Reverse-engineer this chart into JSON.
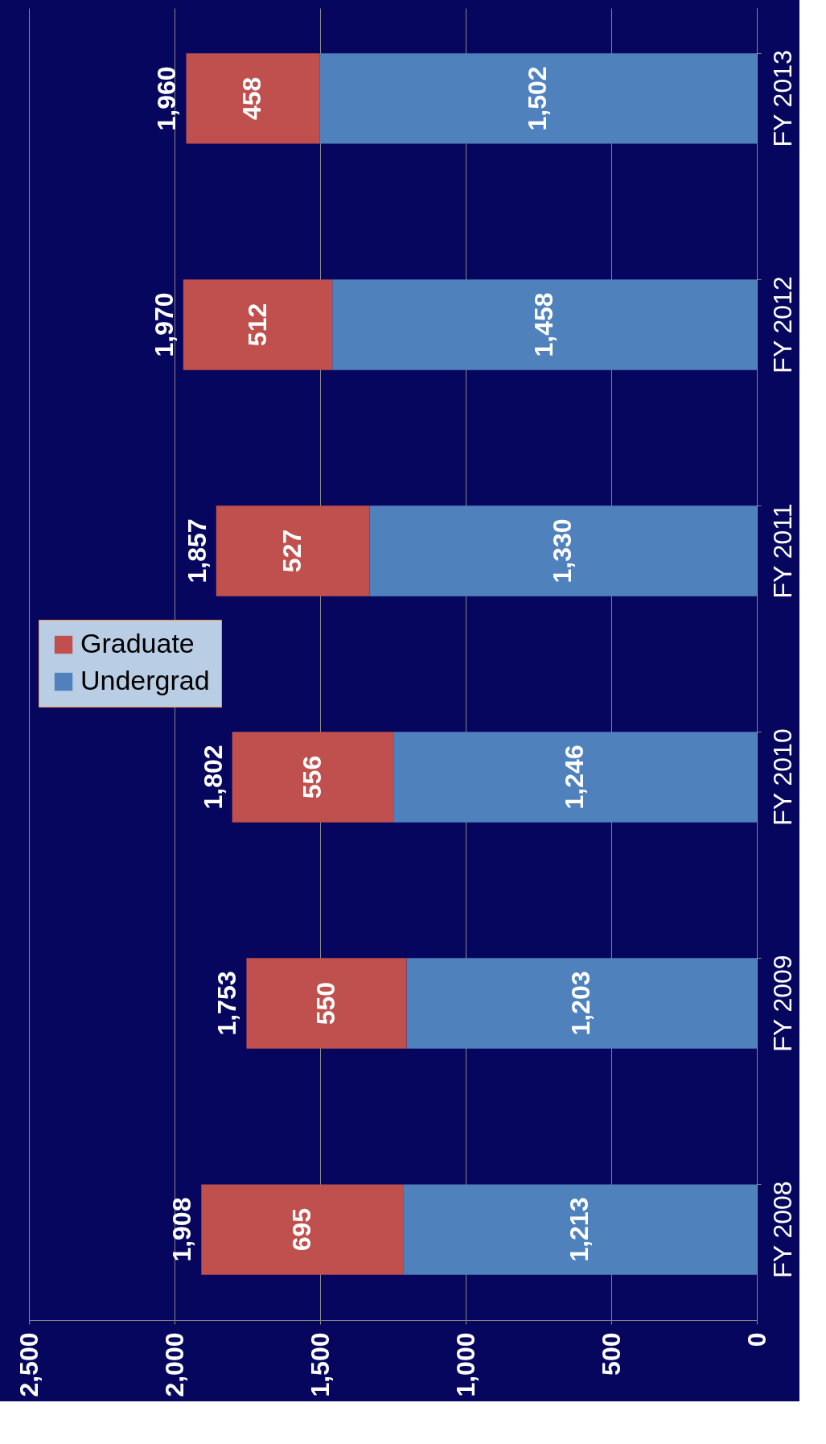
{
  "chart_data": {
    "type": "bar",
    "orientation": "horizontal",
    "stacked": true,
    "categories": [
      "FY 2013",
      "FY 2012",
      "FY 2011",
      "FY 2010",
      "FY 2009",
      "FY 2008"
    ],
    "series": [
      {
        "name": "Undergrad",
        "color": "#4f81bd",
        "values": [
          1502,
          1458,
          1330,
          1246,
          1203,
          1213
        ],
        "value_labels": [
          "1,502",
          "1,458",
          "1,330",
          "1,246",
          "1,203",
          "1,213"
        ]
      },
      {
        "name": "Graduate",
        "color": "#c0504d",
        "values": [
          458,
          512,
          527,
          556,
          550,
          695
        ],
        "value_labels": [
          "458",
          "512",
          "527",
          "556",
          "550",
          "695"
        ]
      }
    ],
    "totals": [
      "1,960",
      "1,970",
      "1,857",
      "1,802",
      "1,753",
      "1,908"
    ],
    "xlim": [
      2500,
      0
    ],
    "xticks": [
      {
        "value": 0,
        "label": "0"
      },
      {
        "value": 500,
        "label": "500"
      },
      {
        "value": 1000,
        "label": "1,000"
      },
      {
        "value": 1500,
        "label": "1,500"
      },
      {
        "value": 2000,
        "label": "2,000"
      },
      {
        "value": 2500,
        "label": "2,500"
      }
    ],
    "grid": "x",
    "legend": "left"
  }
}
